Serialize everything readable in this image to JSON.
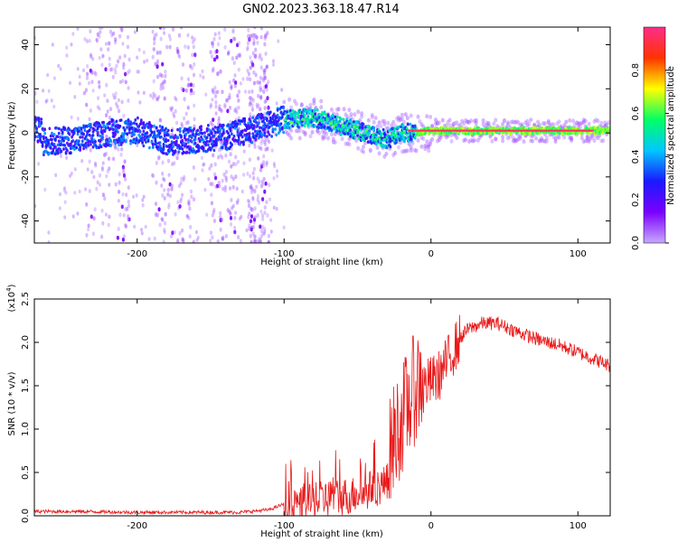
{
  "figure": {
    "title": "GN02.2023.363.18.47.R14",
    "background": "#ffffff"
  },
  "chart_data": [
    {
      "type": "heatmap",
      "xlabel": "Height of straight line (km)",
      "ylabel": "Frequency (Hz)",
      "xlim": [
        -270,
        122
      ],
      "ylim": [
        -50,
        48
      ],
      "xticks": [
        -200,
        -100,
        0,
        100
      ],
      "yticks": [
        -40,
        -20,
        0,
        20,
        40
      ],
      "colorbar": {
        "label": "Normalized spectral amplitude",
        "range": [
          0.0,
          1.0
        ],
        "ticks": [
          0.0,
          0.2,
          0.4,
          0.6,
          0.8
        ],
        "colormap": "rainbow (purple-blue-cyan-green-yellow-red-magenta)",
        "colors": [
          "#ffffff",
          "#c8a8ff",
          "#7a00ff",
          "#1a1aff",
          "#00c8ff",
          "#00ff66",
          "#ffff00",
          "#ff3300",
          "#ff2d8a"
        ]
      },
      "centerline": [
        {
          "x": -265,
          "y": -4
        },
        {
          "x": -240,
          "y": -3
        },
        {
          "x": -220,
          "y": 0
        },
        {
          "x": -200,
          "y": 1
        },
        {
          "x": -180,
          "y": -4
        },
        {
          "x": -160,
          "y": -3
        },
        {
          "x": -140,
          "y": -2
        },
        {
          "x": -120,
          "y": 2
        },
        {
          "x": -100,
          "y": 6
        },
        {
          "x": -80,
          "y": 7
        },
        {
          "x": -60,
          "y": 3
        },
        {
          "x": -45,
          "y": 0
        },
        {
          "x": -30,
          "y": -3
        },
        {
          "x": -20,
          "y": 0
        },
        {
          "x": -10,
          "y": 0
        },
        {
          "x": 0,
          "y": 1
        },
        {
          "x": 30,
          "y": 1
        },
        {
          "x": 60,
          "y": 1
        },
        {
          "x": 90,
          "y": 1
        },
        {
          "x": 122,
          "y": 1
        }
      ],
      "peak_amplitude_region": {
        "x_range": [
          -15,
          110
        ],
        "frequency_hz": 1,
        "amplitude": 0.95
      }
    },
    {
      "type": "line",
      "xlabel": "Height of straight line (km)",
      "ylabel": "SNR (10 * v/v)",
      "y_multiplier_label": "(x10",
      "y_multiplier_exponent": "4",
      "y_multiplier_close": ")",
      "xlim": [
        -270,
        122
      ],
      "ylim": [
        0.0,
        2.5
      ],
      "xticks": [
        -200,
        -100,
        0,
        100
      ],
      "yticks": [
        0.0,
        0.5,
        1.0,
        1.5,
        2.0,
        2.5
      ],
      "series": [
        {
          "color": "#e8191a",
          "points": [
            {
              "x": -270,
              "y": 0.03
            },
            {
              "x": -240,
              "y": 0.03
            },
            {
              "x": -200,
              "y": 0.02
            },
            {
              "x": -160,
              "y": 0.02
            },
            {
              "x": -130,
              "y": 0.02
            },
            {
              "x": -110,
              "y": 0.05
            },
            {
              "x": -95,
              "y": 0.15
            },
            {
              "x": -85,
              "y": 0.2
            },
            {
              "x": -75,
              "y": 0.25
            },
            {
              "x": -65,
              "y": 0.3
            },
            {
              "x": -55,
              "y": 0.3
            },
            {
              "x": -45,
              "y": 0.35
            },
            {
              "x": -38,
              "y": 0.4
            },
            {
              "x": -30,
              "y": 0.45
            },
            {
              "x": -25,
              "y": 0.8
            },
            {
              "x": -20,
              "y": 1.0
            },
            {
              "x": -15,
              "y": 1.2
            },
            {
              "x": -10,
              "y": 1.4
            },
            {
              "x": -5,
              "y": 1.5
            },
            {
              "x": 0,
              "y": 1.55
            },
            {
              "x": 5,
              "y": 1.6
            },
            {
              "x": 10,
              "y": 1.75
            },
            {
              "x": 15,
              "y": 1.9
            },
            {
              "x": 20,
              "y": 2.05
            },
            {
              "x": 25,
              "y": 2.15
            },
            {
              "x": 35,
              "y": 2.22
            },
            {
              "x": 45,
              "y": 2.22
            },
            {
              "x": 55,
              "y": 2.15
            },
            {
              "x": 65,
              "y": 2.08
            },
            {
              "x": 75,
              "y": 2.02
            },
            {
              "x": 85,
              "y": 1.98
            },
            {
              "x": 95,
              "y": 1.92
            },
            {
              "x": 105,
              "y": 1.85
            },
            {
              "x": 115,
              "y": 1.78
            },
            {
              "x": 122,
              "y": 1.73
            }
          ],
          "noise": [
            {
              "x_range": [
                -270,
                -100
              ],
              "amplitude": 0.04
            },
            {
              "x_range": [
                -100,
                -30
              ],
              "amplitude": 0.5
            },
            {
              "x_range": [
                -30,
                -5
              ],
              "amplitude": 1.1
            },
            {
              "x_range": [
                -5,
                20
              ],
              "amplitude": 0.3
            },
            {
              "x_range": [
                20,
                122
              ],
              "amplitude": 0.08
            }
          ]
        }
      ]
    }
  ]
}
